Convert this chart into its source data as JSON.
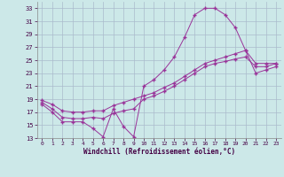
{
  "xlabel": "Windchill (Refroidissement éolien,°C)",
  "xlim": [
    -0.5,
    23.5
  ],
  "ylim": [
    13,
    34
  ],
  "yticks": [
    13,
    15,
    17,
    19,
    21,
    23,
    25,
    27,
    29,
    31,
    33
  ],
  "xticks": [
    0,
    1,
    2,
    3,
    4,
    5,
    6,
    7,
    8,
    9,
    10,
    11,
    12,
    13,
    14,
    15,
    16,
    17,
    18,
    19,
    20,
    21,
    22,
    23
  ],
  "line_color": "#993399",
  "bg_color": "#cce8e8",
  "grid_color": "#aabbcc",
  "series": [
    {
      "x": [
        0,
        1,
        2,
        3,
        4,
        5,
        6,
        7,
        8,
        9,
        10,
        11,
        12,
        13,
        14,
        15,
        16,
        17,
        18,
        19,
        20,
        21,
        22,
        23
      ],
      "y": [
        18.2,
        17.0,
        15.5,
        15.5,
        15.5,
        14.5,
        13.2,
        17.5,
        14.8,
        13.2,
        21.0,
        22.0,
        23.5,
        25.5,
        28.5,
        32.0,
        33.0,
        33.0,
        32.0,
        30.0,
        26.5,
        24.5,
        24.5,
        24.5
      ]
    },
    {
      "x": [
        0,
        1,
        2,
        3,
        4,
        5,
        6,
        7,
        8,
        9,
        10,
        11,
        12,
        13,
        14,
        15,
        16,
        17,
        18,
        19,
        20,
        21,
        22,
        23
      ],
      "y": [
        18.8,
        18.2,
        17.2,
        17.0,
        17.0,
        17.2,
        17.2,
        18.0,
        18.5,
        19.0,
        19.5,
        20.0,
        20.8,
        21.5,
        22.5,
        23.5,
        24.5,
        25.0,
        25.5,
        26.0,
        26.5,
        23.0,
        23.5,
        24.0
      ]
    },
    {
      "x": [
        0,
        1,
        2,
        3,
        4,
        5,
        6,
        7,
        8,
        9,
        10,
        11,
        12,
        13,
        14,
        15,
        16,
        17,
        18,
        19,
        20,
        21,
        22,
        23
      ],
      "y": [
        18.5,
        17.5,
        16.2,
        16.0,
        16.0,
        16.2,
        16.0,
        16.8,
        17.2,
        17.5,
        19.0,
        19.5,
        20.2,
        21.0,
        22.0,
        23.0,
        24.0,
        24.5,
        24.8,
        25.2,
        25.5,
        24.0,
        24.0,
        24.5
      ]
    }
  ]
}
